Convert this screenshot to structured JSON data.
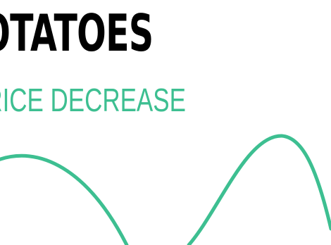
{
  "header": {
    "title": "POTATOES",
    "subtitle": "PRICE DECREASE"
  },
  "colors": {
    "title": "#000000",
    "accent": "#3dbf91",
    "background": "#ffffff"
  }
}
